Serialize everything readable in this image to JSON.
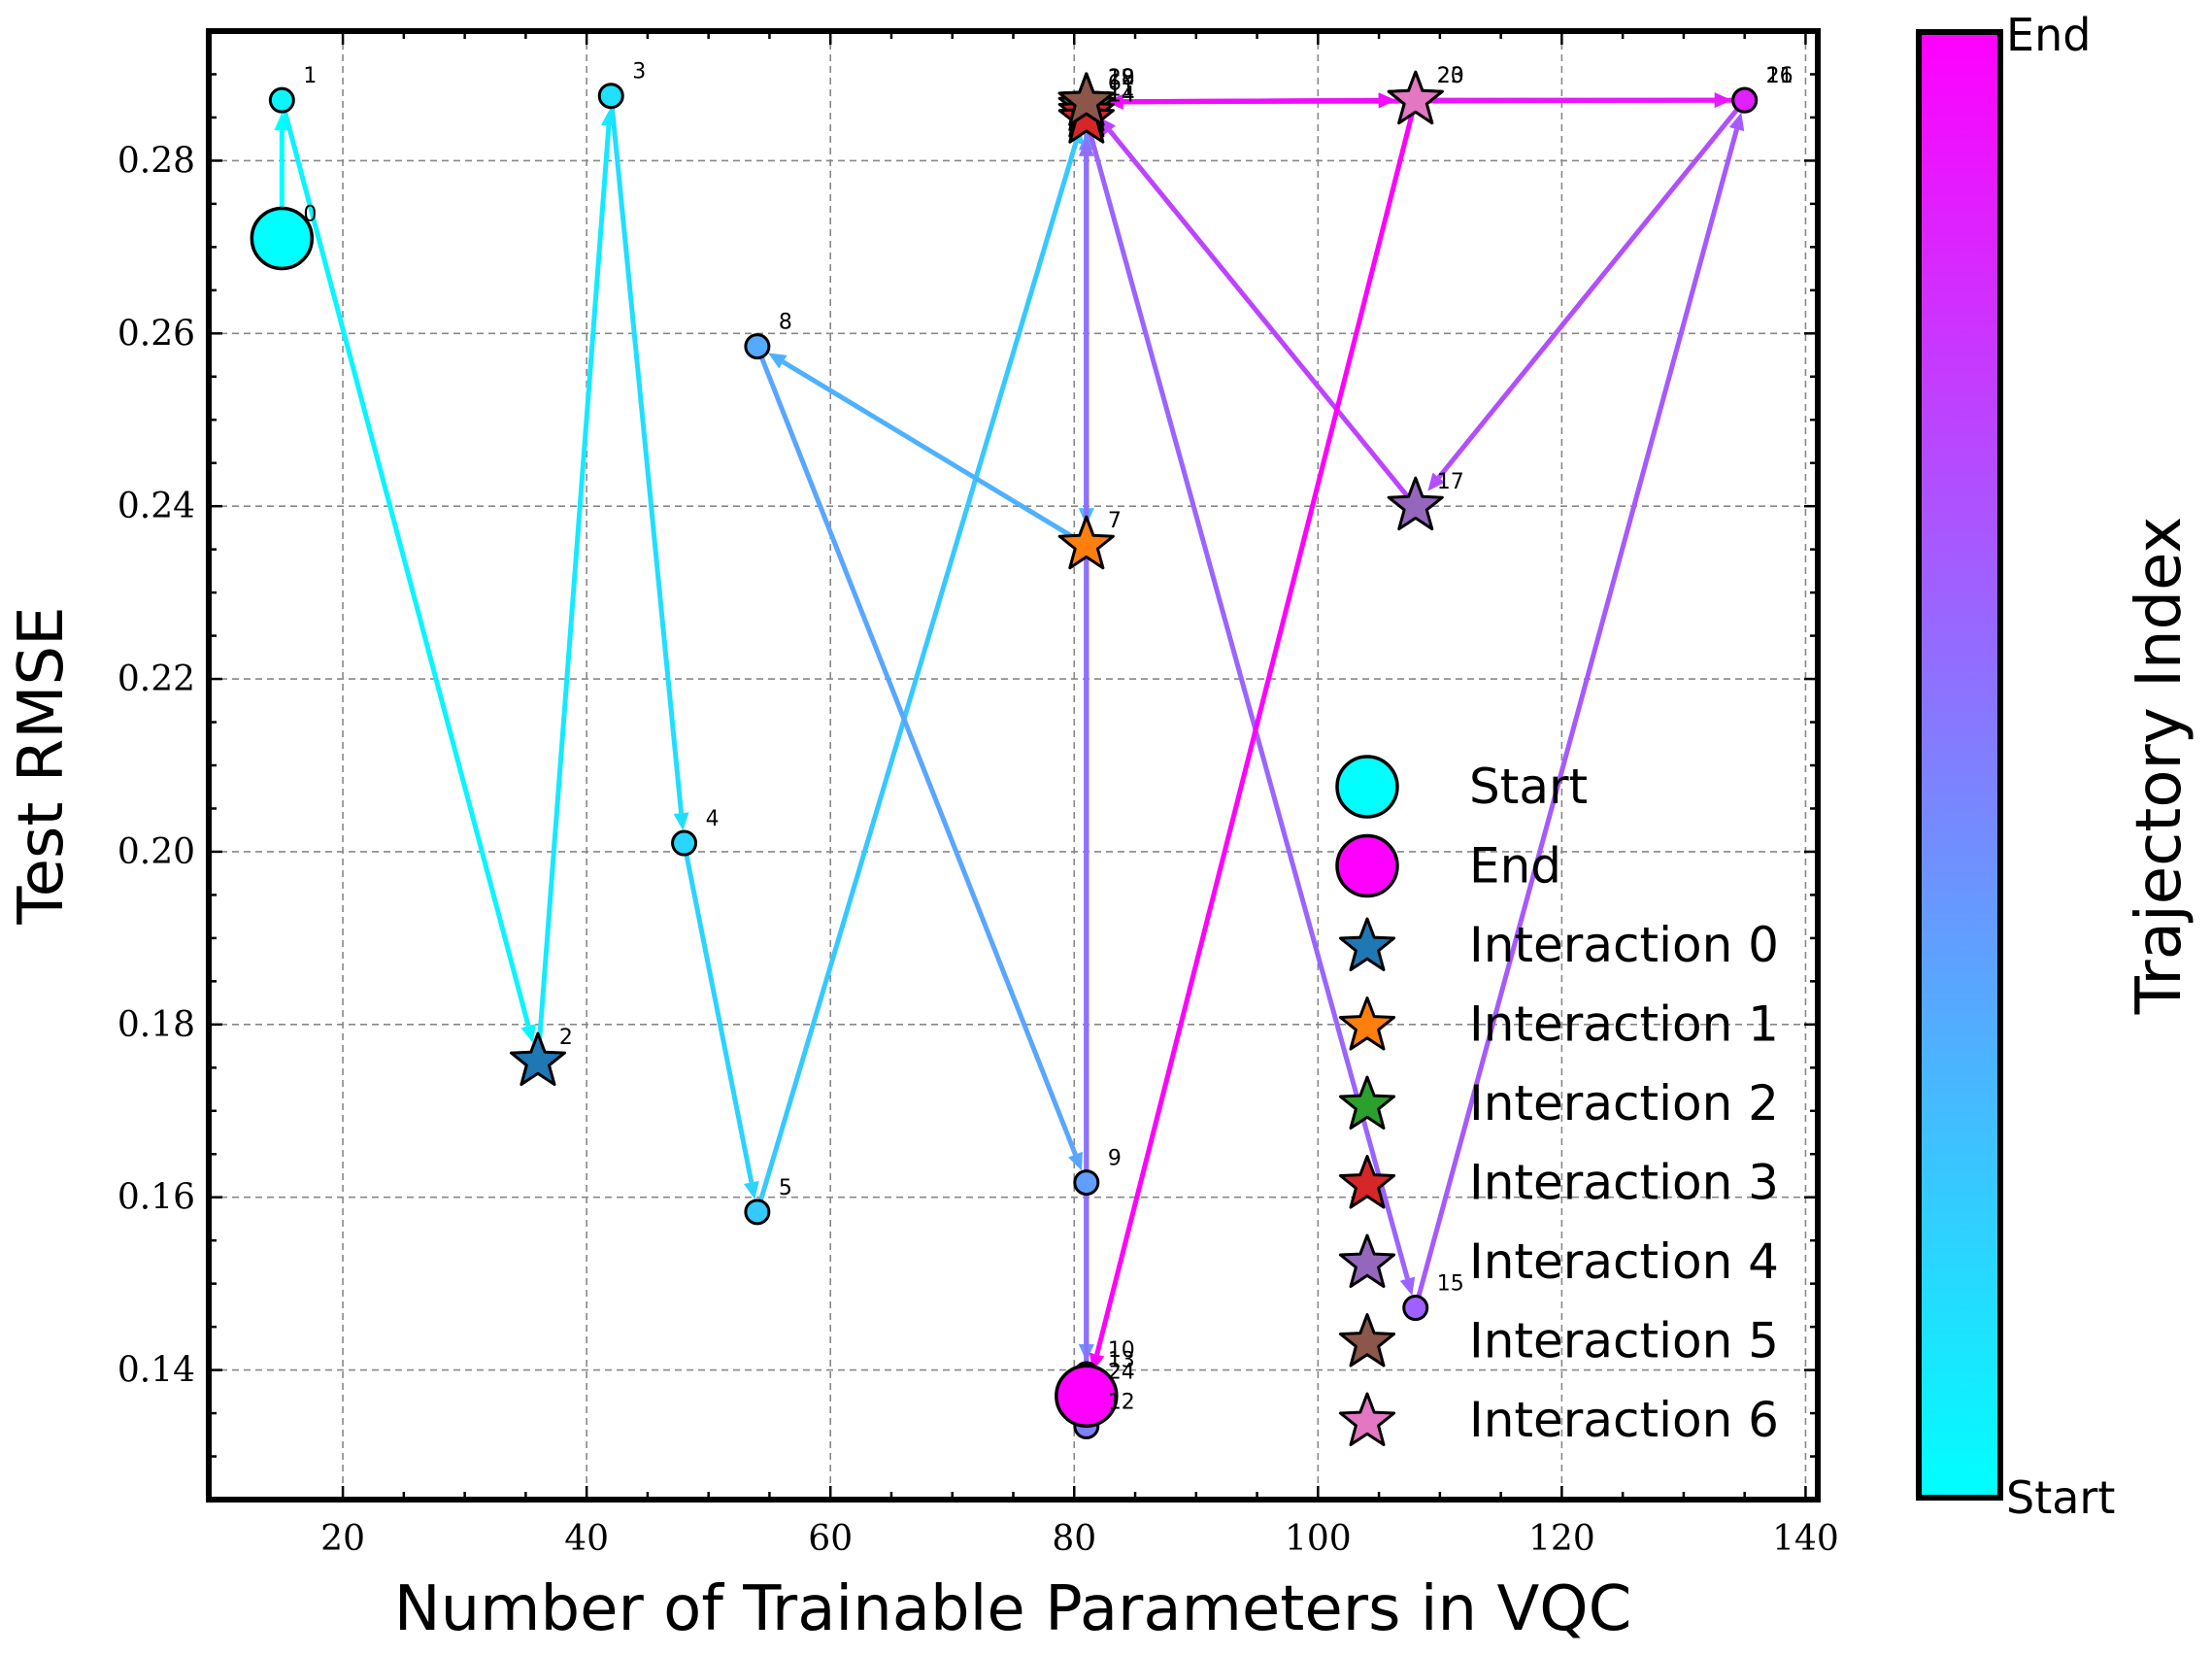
{
  "chart_data": {
    "type": "scatter",
    "title": "",
    "xlabel": "Number of Trainable Parameters in VQC",
    "ylabel": "Test RMSE",
    "xlim": [
      9,
      141
    ],
    "ylim": [
      0.125,
      0.295
    ],
    "xticks": [
      20,
      40,
      60,
      80,
      100,
      120,
      140
    ],
    "yticks": [
      0.14,
      0.16,
      0.18,
      0.2,
      0.22,
      0.24,
      0.26,
      0.28
    ],
    "ytick_labels": [
      "0.14",
      "0.16",
      "0.18",
      "0.20",
      "0.22",
      "0.24",
      "0.26",
      "0.28"
    ],
    "grid": true,
    "legend_position": "lower-right",
    "colors": {
      "start": "#00FFFF",
      "end": "#FF00FF",
      "interaction_0": "#1F77B4",
      "interaction_1": "#FF7F0E",
      "interaction_2": "#2CA02C",
      "interaction_3": "#D62728",
      "interaction_4": "#9467BD",
      "interaction_5": "#8C564B",
      "interaction_6": "#E377C2"
    },
    "trajectory": [
      {
        "index": 0,
        "x": 15,
        "y": 0.271,
        "marker": "start"
      },
      {
        "index": 1,
        "x": 15,
        "y": 0.287,
        "marker": "circle"
      },
      {
        "index": 2,
        "x": 36,
        "y": 0.1757,
        "marker": "interaction_0"
      },
      {
        "index": 3,
        "x": 42,
        "y": 0.2875,
        "marker": "circle"
      },
      {
        "index": 4,
        "x": 48,
        "y": 0.201,
        "marker": "circle"
      },
      {
        "index": 5,
        "x": 54,
        "y": 0.1583,
        "marker": "circle"
      },
      {
        "index": 6,
        "x": 81,
        "y": 0.2862,
        "marker": "interaction_2"
      },
      {
        "index": 7,
        "x": 81,
        "y": 0.2355,
        "marker": "interaction_1"
      },
      {
        "index": 8,
        "x": 54,
        "y": 0.2585,
        "marker": "circle"
      },
      {
        "index": 9,
        "x": 81,
        "y": 0.1617,
        "marker": "circle"
      },
      {
        "index": 10,
        "x": 81,
        "y": 0.1395,
        "marker": "circle"
      },
      {
        "index": 11,
        "x": 81,
        "y": 0.2855,
        "marker": "interaction_3"
      },
      {
        "index": 12,
        "x": 81,
        "y": 0.1335,
        "marker": "circle"
      },
      {
        "index": 13,
        "x": 81,
        "y": 0.1383,
        "marker": "circle"
      },
      {
        "index": 14,
        "x": 81,
        "y": 0.2848,
        "marker": "interaction_3"
      },
      {
        "index": 15,
        "x": 108,
        "y": 0.1472,
        "marker": "circle"
      },
      {
        "index": 16,
        "x": 135,
        "y": 0.287,
        "marker": "circle"
      },
      {
        "index": 17,
        "x": 108,
        "y": 0.24,
        "marker": "interaction_4"
      },
      {
        "index": 18,
        "x": 81,
        "y": 0.2868,
        "marker": "interaction_5"
      },
      {
        "index": 19,
        "x": 81,
        "y": 0.2868,
        "marker": "interaction_5"
      },
      {
        "index": 20,
        "x": 108,
        "y": 0.287,
        "marker": "interaction_6"
      },
      {
        "index": 21,
        "x": 135,
        "y": 0.287,
        "marker": "circle"
      },
      {
        "index": 22,
        "x": 81,
        "y": 0.2868,
        "marker": "interaction_5"
      },
      {
        "index": 23,
        "x": 108,
        "y": 0.287,
        "marker": "interaction_6"
      },
      {
        "index": 24,
        "x": 81,
        "y": 0.137,
        "marker": "end"
      }
    ],
    "point_labels": [
      {
        "text": "0",
        "index": 0
      },
      {
        "text": "1",
        "index": 1
      },
      {
        "text": "2",
        "index": 2
      },
      {
        "text": "3",
        "index": 3
      },
      {
        "text": "4",
        "index": 4
      },
      {
        "text": "5",
        "index": 5
      },
      {
        "text": "6",
        "index": 6
      },
      {
        "text": "7",
        "index": 7
      },
      {
        "text": "8",
        "index": 8
      },
      {
        "text": "9",
        "index": 9
      },
      {
        "text": "10",
        "index": 10
      },
      {
        "text": "11",
        "index": 11
      },
      {
        "text": "12",
        "index": 12
      },
      {
        "text": "13",
        "index": 13
      },
      {
        "text": "14",
        "index": 14
      },
      {
        "text": "15",
        "index": 15
      },
      {
        "text": "16",
        "index": 16
      },
      {
        "text": "17",
        "index": 17
      },
      {
        "text": "18",
        "index": 18
      },
      {
        "text": "19",
        "index": 19
      },
      {
        "text": "20",
        "index": 20
      },
      {
        "text": "21",
        "index": 21
      },
      {
        "text": "22",
        "index": 22
      },
      {
        "text": "23",
        "index": 23
      },
      {
        "text": "24",
        "index": 24
      }
    ],
    "legend": [
      {
        "label": "Start",
        "key": "start",
        "shape": "circle"
      },
      {
        "label": "End",
        "key": "end",
        "shape": "circle"
      },
      {
        "label": "Interaction 0",
        "key": "interaction_0",
        "shape": "star"
      },
      {
        "label": "Interaction 1",
        "key": "interaction_1",
        "shape": "star"
      },
      {
        "label": "Interaction 2",
        "key": "interaction_2",
        "shape": "star"
      },
      {
        "label": "Interaction 3",
        "key": "interaction_3",
        "shape": "star"
      },
      {
        "label": "Interaction 4",
        "key": "interaction_4",
        "shape": "star"
      },
      {
        "label": "Interaction 5",
        "key": "interaction_5",
        "shape": "star"
      },
      {
        "label": "Interaction 6",
        "key": "interaction_6",
        "shape": "star"
      }
    ],
    "colorbar": {
      "label": "Trajectory Index",
      "top_label": "End",
      "bottom_label": "Start",
      "colormap": "cool"
    }
  }
}
